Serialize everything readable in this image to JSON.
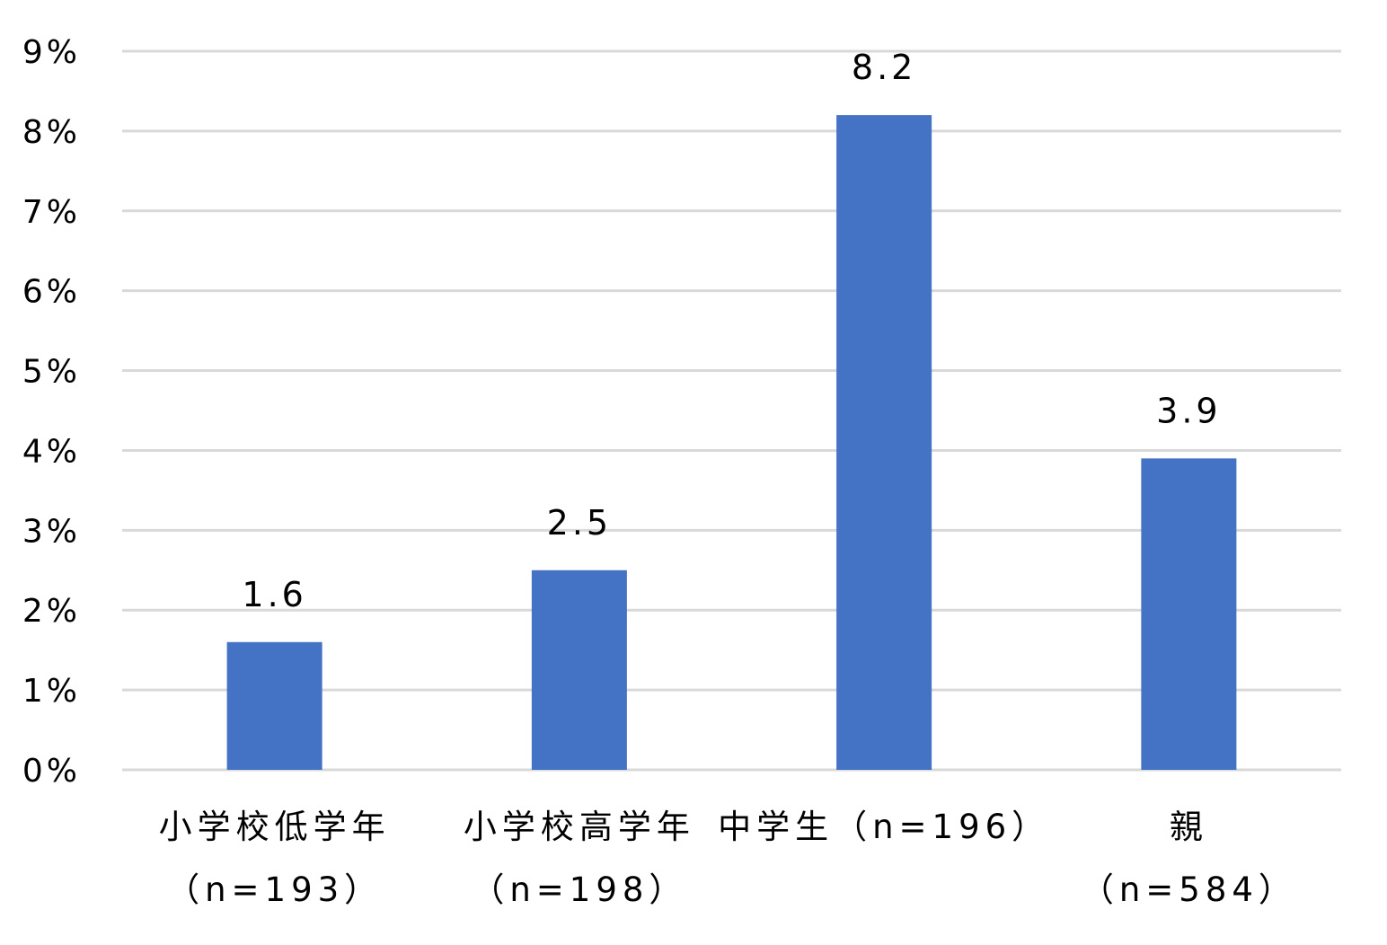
{
  "chart_data": {
    "type": "bar",
    "title": "",
    "xlabel": "",
    "ylabel": "",
    "ylim": [
      0,
      9
    ],
    "yticks": [
      0,
      1,
      2,
      3,
      4,
      5,
      6,
      7,
      8,
      9
    ],
    "ytick_labels": [
      "0%",
      "1%",
      "2%",
      "3%",
      "4%",
      "5%",
      "6%",
      "7%",
      "8%",
      "9%"
    ],
    "grid": true,
    "legend": "none",
    "categories": [
      [
        "小学校低学年",
        "（n=193）"
      ],
      [
        "小学校高学年",
        "（n=198）"
      ],
      [
        "中学生（n=196）"
      ],
      [
        "親",
        "（n=584）"
      ]
    ],
    "values": [
      1.6,
      2.5,
      8.2,
      3.9
    ],
    "data_labels": [
      "1.6",
      "2.5",
      "8.2",
      "3.9"
    ],
    "bar_color": "#4472c4"
  }
}
